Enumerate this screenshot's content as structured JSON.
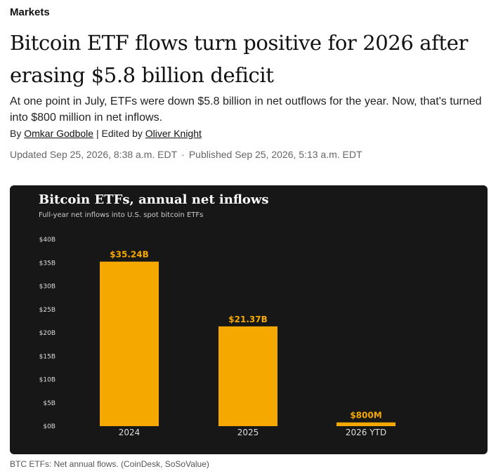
{
  "article": {
    "section": "Markets",
    "headline": "Bitcoin ETF flows turn positive for 2026 after erasing $5.8 billion deficit",
    "dek": "At one point in July, ETFs were down $5.8 billion in net outflows for the year. Now, that's turned into $800 million in net inflows.",
    "byline_prefix": "By",
    "author": "Omkar Godbole",
    "edited_prefix": "| Edited by",
    "editor": "Oliver Knight",
    "updated": "Updated Sep 25, 2026, 8:38 a.m. EDT",
    "published": "Published Sep 25, 2026, 5:13 a.m. EDT",
    "separator": "·",
    "caption": "BTC ETFs: Net annual flows. (CoinDesk, SoSoValue)"
  },
  "colors": {
    "background": "#171717",
    "bar": "#F5A900",
    "title": "#ffffff",
    "subtitle": "#cccccc",
    "tick": "#dddddd"
  },
  "chart_data": {
    "type": "bar",
    "title": "Bitcoin ETFs, annual net inflows",
    "subtitle": "Full-year net inflows into U.S. spot bitcoin ETFs",
    "categories": [
      "2024",
      "2025",
      "2026 YTD"
    ],
    "values": [
      35.24,
      21.37,
      0.8
    ],
    "data_labels": [
      "$35.24B",
      "$21.37B",
      "$800M"
    ],
    "unit": "USD billions",
    "ylim": [
      0,
      40
    ],
    "yticks": [
      0,
      5,
      10,
      15,
      20,
      25,
      30,
      35,
      40
    ],
    "ytick_labels": [
      "$0B",
      "$5B",
      "$10B",
      "$15B",
      "$20B",
      "$25B",
      "$30B",
      "$35B",
      "$40B"
    ],
    "grid": false,
    "legend": "none"
  }
}
